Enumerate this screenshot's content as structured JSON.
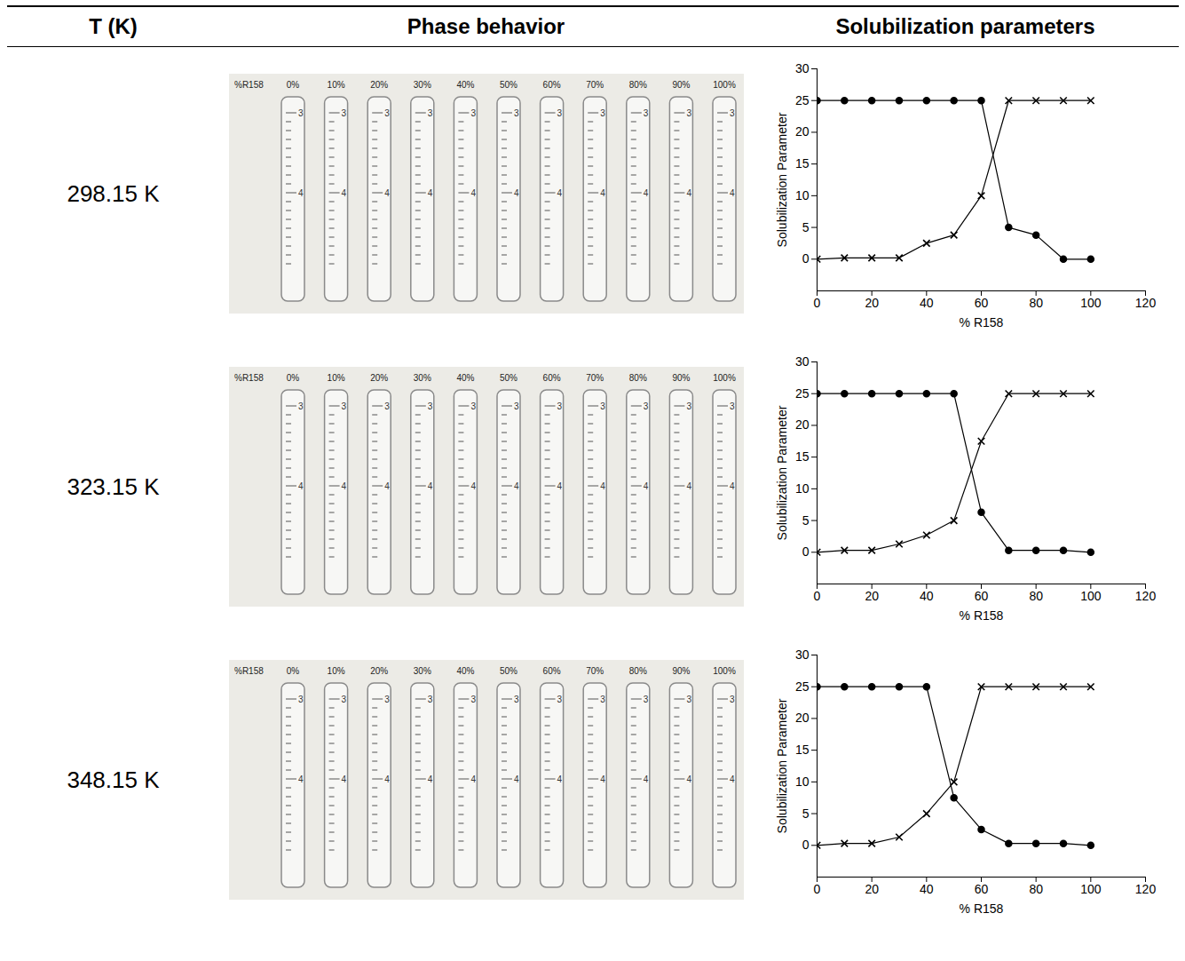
{
  "header": [
    "T (K)",
    "Phase behavior",
    "Solubilization parameters"
  ],
  "temperatures": [
    "298.15 K",
    "323.15 K",
    "348.15 K"
  ],
  "tubes": {
    "axis_label": "%R158",
    "labels": [
      "0%",
      "10%",
      "20%",
      "30%",
      "40%",
      "50%",
      "60%",
      "70%",
      "80%",
      "90%",
      "100%"
    ],
    "graduations": [
      "3",
      "4"
    ]
  },
  "chart_data": [
    {
      "type": "line",
      "xlabel": "% R158",
      "ylabel": "Solubilization Parameter",
      "x": [
        0,
        10,
        20,
        30,
        40,
        50,
        60,
        70,
        80,
        90,
        100
      ],
      "series": [
        {
          "color": "#000000",
          "marker": "circle",
          "values": [
            25,
            25,
            25,
            25,
            25,
            25,
            25,
            5,
            3.8,
            0,
            0
          ]
        },
        {
          "color": "#000000",
          "marker": "x",
          "values": [
            0,
            0.2,
            0.2,
            0.2,
            2.5,
            3.8,
            10,
            25,
            25,
            25,
            25
          ]
        }
      ],
      "xlim": [
        0,
        120
      ],
      "xticks": [
        0,
        20,
        40,
        60,
        80,
        100,
        120
      ],
      "ylim": [
        -5,
        30
      ],
      "yticks": [
        0,
        5,
        10,
        15,
        20,
        25,
        30
      ],
      "grid": false
    },
    {
      "type": "line",
      "xlabel": "% R158",
      "ylabel": "Solubilization Parameter",
      "x": [
        0,
        10,
        20,
        30,
        40,
        50,
        60,
        70,
        80,
        90,
        100
      ],
      "series": [
        {
          "color": "#000000",
          "marker": "circle",
          "values": [
            25,
            25,
            25,
            25,
            25,
            25,
            6.3,
            0.3,
            0.3,
            0.3,
            0
          ]
        },
        {
          "color": "#000000",
          "marker": "x",
          "values": [
            0,
            0.3,
            0.3,
            1.3,
            2.7,
            5,
            17.5,
            25,
            25,
            25,
            25
          ]
        }
      ],
      "xlim": [
        0,
        120
      ],
      "xticks": [
        0,
        20,
        40,
        60,
        80,
        100,
        120
      ],
      "ylim": [
        -5,
        30
      ],
      "yticks": [
        0,
        5,
        10,
        15,
        20,
        25,
        30
      ],
      "grid": false
    },
    {
      "type": "line",
      "xlabel": "% R158",
      "ylabel": "Solubilization Parameter",
      "x": [
        0,
        10,
        20,
        30,
        40,
        50,
        60,
        70,
        80,
        90,
        100
      ],
      "series": [
        {
          "color": "#000000",
          "marker": "circle",
          "values": [
            25,
            25,
            25,
            25,
            25,
            7.5,
            2.5,
            0.3,
            0.3,
            0.3,
            0
          ]
        },
        {
          "color": "#000000",
          "marker": "x",
          "values": [
            0,
            0.3,
            0.3,
            1.3,
            5,
            10,
            25,
            25,
            25,
            25,
            25
          ]
        }
      ],
      "xlim": [
        0,
        120
      ],
      "xticks": [
        0,
        20,
        40,
        60,
        80,
        100,
        120
      ],
      "ylim": [
        -5,
        30
      ],
      "yticks": [
        0,
        5,
        10,
        15,
        20,
        25,
        30
      ],
      "grid": false
    }
  ]
}
